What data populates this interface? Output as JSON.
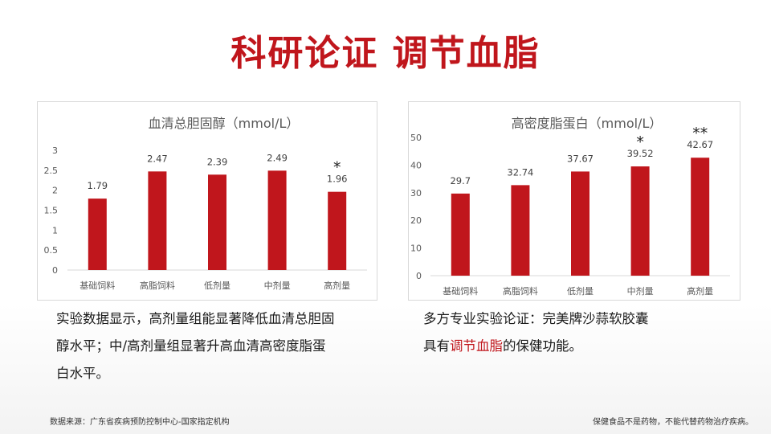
{
  "title": "科研论证 调节血脂",
  "chart_data": [
    {
      "type": "bar",
      "title": "血清总胆固醇（mmol/L）",
      "categories": [
        "基础饲料",
        "高脂饲料",
        "低剂量",
        "中剂量",
        "高剂量"
      ],
      "values": [
        1.79,
        2.47,
        2.39,
        2.49,
        1.96
      ],
      "value_labels": [
        "1.79",
        "2.47",
        "2.39",
        "2.49",
        "1.96"
      ],
      "significance": [
        "",
        "",
        "",
        "",
        "*"
      ],
      "ylim": [
        0,
        3
      ],
      "yticks": [
        0,
        0.5,
        1,
        1.5,
        2,
        2.5,
        3
      ],
      "ytick_labels": [
        "0",
        "0.5",
        "1",
        "1.5",
        "2",
        "2.5",
        "3"
      ],
      "grid": false,
      "bar_color": "#c0161c"
    },
    {
      "type": "bar",
      "title": "高密度脂蛋白（mmol/L）",
      "categories": [
        "基础饲料",
        "高脂饲料",
        "低剂量",
        "中剂量",
        "高剂量"
      ],
      "values": [
        29.7,
        32.74,
        37.67,
        39.52,
        42.67
      ],
      "value_labels": [
        "29.7",
        "32.74",
        "37.67",
        "39.52",
        "42.67"
      ],
      "significance": [
        "",
        "",
        "",
        "*",
        "**"
      ],
      "ylim": [
        0,
        50
      ],
      "yticks": [
        0,
        10,
        20,
        30,
        40,
        50
      ],
      "ytick_labels": [
        "0",
        "10",
        "20",
        "30",
        "40",
        "50"
      ],
      "grid": false,
      "bar_color": "#c0161c"
    }
  ],
  "desc_left": {
    "lines": [
      "实验数据显示，高剂量组能显著降低血清总胆固",
      "醇水平；中/高剂量组显著升高血清高密度脂蛋",
      "白水平。"
    ]
  },
  "desc_right": {
    "line1": "多方专业实验论证：完美牌沙蒜软胶囊",
    "line2_prefix": "具有",
    "line2_highlight": "调节血脂",
    "line2_suffix": "的保健功能。"
  },
  "footer": {
    "source": "数据来源：广东省疾病预防控制中心-国家指定机构",
    "disclaimer": "保健食品不是药物，不能代替药物治疗疾病。"
  },
  "colors": {
    "accent": "#c0161c",
    "text": "#1a1a1a",
    "axis_text": "#595959"
  }
}
